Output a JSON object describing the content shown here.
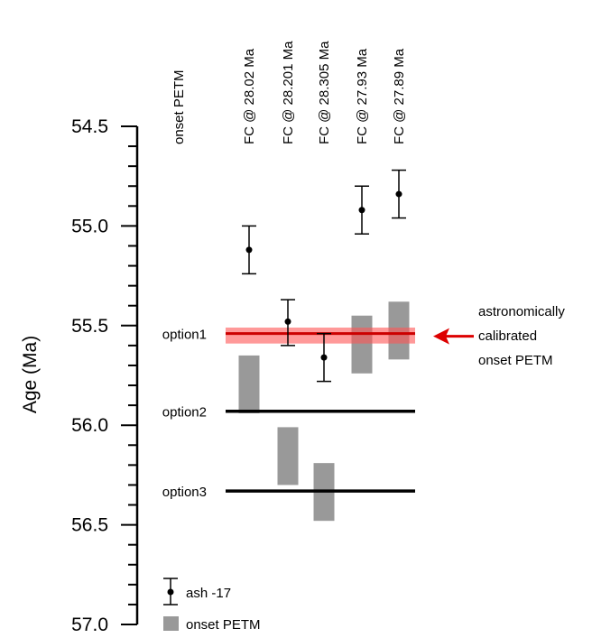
{
  "chart_data": {
    "type": "scatter",
    "title": "",
    "ylabel": "Age (Ma)",
    "xlabel": "",
    "ylim": [
      54.5,
      57.0
    ],
    "y_inverted": true,
    "y_ticks": [
      "54.5",
      "55.0",
      "55.5",
      "56.0",
      "56.5",
      "57.0"
    ],
    "y_minor_step": 0.1,
    "columns": [
      "onset PETM",
      "FC @ 28.02  Ma",
      "FC @ 28.201  Ma",
      "FC @ 28.305  Ma",
      "FC @ 27.93  Ma",
      "FC @ 27.89  Ma"
    ],
    "series": [
      {
        "name": "ash -17",
        "kind": "point_errorbar",
        "points": [
          {
            "column": "FC @ 28.02  Ma",
            "age": 55.12,
            "low": 55.0,
            "high": 55.24
          },
          {
            "column": "FC @ 28.201  Ma",
            "age": 55.48,
            "low": 55.37,
            "high": 55.6
          },
          {
            "column": "FC @ 28.305  Ma",
            "age": 55.66,
            "low": 55.54,
            "high": 55.78
          },
          {
            "column": "FC @ 27.93  Ma",
            "age": 54.92,
            "low": 54.8,
            "high": 55.04
          },
          {
            "column": "FC @ 27.89  Ma",
            "age": 54.84,
            "low": 54.72,
            "high": 54.96
          }
        ]
      },
      {
        "name": "onset PETM",
        "kind": "range_box",
        "color": "#999999",
        "ranges": [
          {
            "column": "FC @ 28.02  Ma",
            "top": 55.65,
            "bottom": 55.94
          },
          {
            "column": "FC @ 28.201  Ma",
            "top": 56.01,
            "bottom": 56.3
          },
          {
            "column": "FC @ 28.305  Ma",
            "top": 56.19,
            "bottom": 56.48
          },
          {
            "column": "FC @ 27.93  Ma",
            "top": 55.45,
            "bottom": 55.74
          },
          {
            "column": "FC @ 27.89  Ma",
            "top": 55.38,
            "bottom": 55.67
          }
        ]
      }
    ],
    "options": [
      {
        "label": "option1",
        "age": 55.54,
        "color": "#cc0000"
      },
      {
        "label": "option2",
        "age": 55.93,
        "color": "#000000"
      },
      {
        "label": "option3",
        "age": 56.33,
        "color": "#000000"
      }
    ],
    "astro_band": {
      "top": 55.51,
      "bottom": 55.59,
      "color": "#ff5555"
    },
    "annotation": {
      "lines": [
        "astronomically",
        "calibrated",
        "onset PETM"
      ],
      "arrow_color": "#dd0000"
    },
    "legend": {
      "position": "bottom-left",
      "items": [
        {
          "label": "ash -17",
          "marker": "point_errorbar"
        },
        {
          "label": "onset PETM",
          "marker": "grey_box"
        }
      ]
    }
  }
}
